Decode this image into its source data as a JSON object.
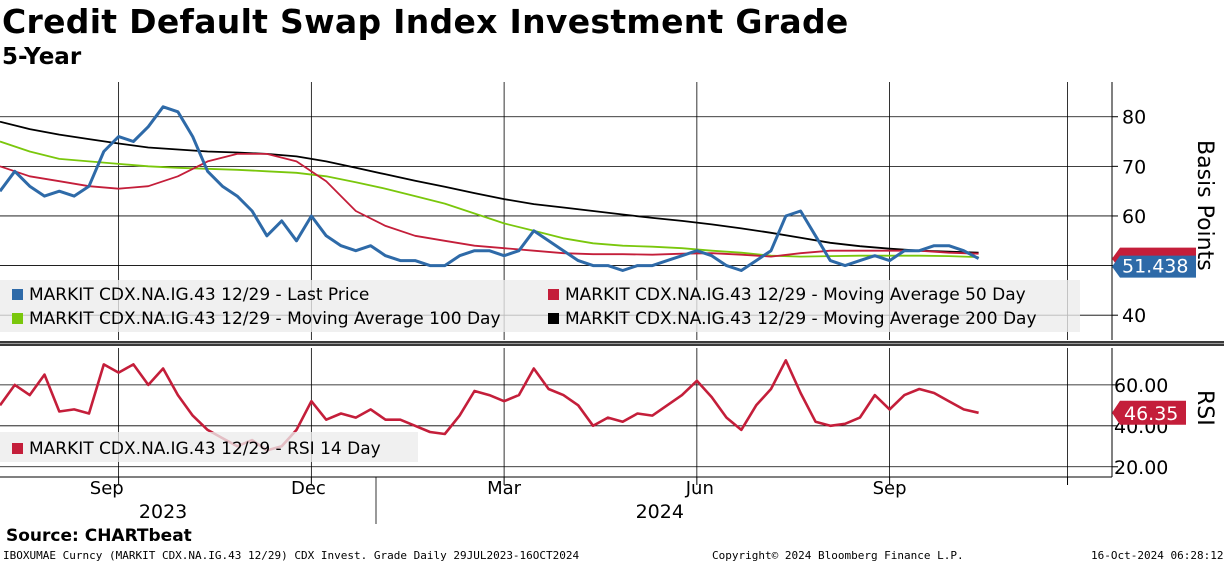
{
  "title": "Credit Default Swap Index Investment Grade",
  "subtitle": "5-Year",
  "source": "Source: CHARTbeat",
  "footer": {
    "left": "IBOXUMAE Curncy (MARKIT CDX.NA.IG.43 12/29) CDX Invest. Grade  Daily 29JUL2023-16OCT2024",
    "center": "Copyright© 2024 Bloomberg Finance L.P.",
    "right": "16-Oct-2024 06:28:12"
  },
  "colors": {
    "price": "#2e6aa8",
    "ma50": "#c41e3a",
    "ma100": "#7ac70c",
    "ma200": "#000000",
    "rsi": "#c41e3a"
  },
  "chart_data": [
    {
      "type": "line",
      "title": "MARKIT CDX.NA.IG.43 12/29",
      "ylabel": "Basis Points",
      "ylim": [
        35,
        87
      ],
      "yticks": [
        40,
        50,
        60,
        70,
        80
      ],
      "x_range": [
        0,
        75
      ],
      "x_tick_positions": [
        8,
        21,
        34,
        47,
        60,
        72
      ],
      "x_month_labels": [
        "Sep",
        "Dec",
        "Mar",
        "Jun",
        "Sep"
      ],
      "x_month_positions": [
        7.2,
        20.8,
        34.0,
        47.2,
        60.0
      ],
      "x_year_labels": [
        "2023",
        "2024"
      ],
      "x_year_positions": [
        11,
        44.5
      ],
      "last_value_label": "51.438",
      "series": [
        {
          "name": "MARKIT CDX.NA.IG.43 12/29 - Last Price",
          "color_key": "price",
          "x": [
            0,
            1,
            2,
            3,
            4,
            5,
            6,
            7,
            8,
            9,
            10,
            11,
            12,
            13,
            14,
            15,
            16,
            17,
            18,
            19,
            20,
            21,
            22,
            23,
            24,
            25,
            26,
            27,
            28,
            29,
            30,
            31,
            32,
            33,
            34,
            35,
            36,
            37,
            38,
            39,
            40,
            41,
            42,
            43,
            44,
            45,
            46,
            47,
            48,
            49,
            50,
            51,
            52,
            53,
            54,
            55,
            56,
            57,
            58,
            59,
            60,
            61,
            62,
            63,
            64,
            65,
            66
          ],
          "values": [
            65,
            69,
            66,
            64,
            65,
            64,
            66,
            73,
            76,
            75,
            78,
            82,
            81,
            76,
            69,
            66,
            64,
            61,
            56,
            59,
            55,
            60,
            56,
            54,
            53,
            54,
            52,
            51,
            51,
            50,
            50,
            52,
            53,
            53,
            52,
            53,
            57,
            55,
            53,
            51,
            50,
            50,
            49,
            50,
            50,
            51,
            52,
            53,
            52,
            50,
            49,
            51,
            53,
            60,
            61,
            56,
            51,
            50,
            51,
            52,
            51,
            53,
            53,
            54,
            54,
            53,
            51.4
          ]
        },
        {
          "name": "MARKIT CDX.NA.IG.43 12/29 - Moving Average 50 Day",
          "color_key": "ma50",
          "x": [
            0,
            2,
            4,
            6,
            8,
            10,
            12,
            14,
            16,
            18,
            20,
            22,
            24,
            26,
            28,
            30,
            32,
            34,
            36,
            38,
            40,
            42,
            44,
            46,
            48,
            50,
            52,
            54,
            56,
            58,
            60,
            62,
            64,
            66
          ],
          "values": [
            70,
            68,
            67,
            66,
            65.5,
            66,
            68,
            71,
            72.5,
            72.5,
            71,
            67,
            61,
            58,
            56,
            55,
            54,
            53.5,
            53,
            52.5,
            52.3,
            52.3,
            52.2,
            52.4,
            52.5,
            52.2,
            51.8,
            52.5,
            53,
            53,
            53,
            53,
            52.6,
            52.4
          ]
        },
        {
          "name": "MARKIT CDX.NA.IG.43 12/29 - Moving Average 100 Day",
          "color_key": "ma100",
          "x": [
            0,
            2,
            4,
            6,
            8,
            10,
            12,
            14,
            16,
            18,
            20,
            22,
            24,
            26,
            28,
            30,
            32,
            34,
            36,
            38,
            40,
            42,
            44,
            46,
            48,
            50,
            52,
            54,
            56,
            58,
            60,
            62,
            64,
            66
          ],
          "values": [
            75,
            73,
            71.5,
            71,
            70.5,
            70,
            69.7,
            69.5,
            69.3,
            69,
            68.7,
            68,
            66.8,
            65.5,
            64,
            62.5,
            60.5,
            58.5,
            57,
            55.5,
            54.5,
            54,
            53.8,
            53.5,
            53,
            52.6,
            52,
            51.8,
            51.9,
            52,
            52,
            52,
            51.9,
            51.7
          ]
        },
        {
          "name": "MARKIT CDX.NA.IG.43 12/29 - Moving Average 200 Day",
          "color_key": "ma200",
          "x": [
            0,
            2,
            4,
            6,
            8,
            10,
            12,
            14,
            16,
            18,
            20,
            22,
            24,
            26,
            28,
            30,
            32,
            34,
            36,
            38,
            40,
            42,
            44,
            46,
            48,
            50,
            52,
            54,
            56,
            58,
            60,
            62,
            64,
            66
          ],
          "values": [
            79,
            77.5,
            76.4,
            75.5,
            74.6,
            73.8,
            73.4,
            73,
            72.8,
            72.5,
            72,
            71,
            69.7,
            68.4,
            67.1,
            65.9,
            64.6,
            63.4,
            62.4,
            61.7,
            61,
            60.3,
            59.6,
            59,
            58.3,
            57.5,
            56.6,
            55.6,
            54.6,
            53.9,
            53.4,
            53,
            52.8,
            52.6
          ]
        }
      ],
      "legend": [
        {
          "label": "MARKIT CDX.NA.IG.43 12/29 - Last Price",
          "color_key": "price"
        },
        {
          "label": "MARKIT CDX.NA.IG.43 12/29 - Moving Average 50 Day",
          "color_key": "ma50"
        },
        {
          "label": "MARKIT CDX.NA.IG.43 12/29 - Moving Average 100 Day",
          "color_key": "ma100"
        },
        {
          "label": "MARKIT CDX.NA.IG.43 12/29 - Moving Average 200 Day",
          "color_key": "ma200"
        }
      ]
    },
    {
      "type": "line",
      "ylabel": "RSI",
      "ylim": [
        15,
        78
      ],
      "yticks": [
        20,
        40,
        60
      ],
      "ytick_labels": [
        "20.00",
        "40.00",
        "60.00"
      ],
      "last_value_label": "46.35",
      "series": [
        {
          "name": "MARKIT CDX.NA.IG.43 12/29 - RSI 14 Day",
          "color_key": "rsi",
          "x": [
            0,
            1,
            2,
            3,
            4,
            5,
            6,
            7,
            8,
            9,
            10,
            11,
            12,
            13,
            14,
            15,
            16,
            17,
            18,
            19,
            20,
            21,
            22,
            23,
            24,
            25,
            26,
            27,
            28,
            29,
            30,
            31,
            32,
            33,
            34,
            35,
            36,
            37,
            38,
            39,
            40,
            41,
            42,
            43,
            44,
            45,
            46,
            47,
            48,
            49,
            50,
            51,
            52,
            53,
            54,
            55,
            56,
            57,
            58,
            59,
            60,
            61,
            62,
            63,
            64,
            65,
            66
          ],
          "values": [
            50,
            60,
            55,
            65,
            47,
            48,
            46,
            70,
            66,
            70,
            60,
            68,
            55,
            45,
            38,
            34,
            30,
            33,
            28,
            30,
            38,
            52,
            43,
            46,
            44,
            48,
            43,
            43,
            40,
            37,
            36,
            45,
            57,
            55,
            52,
            55,
            68,
            58,
            55,
            50,
            40,
            44,
            42,
            46,
            45,
            50,
            55,
            62,
            54,
            44,
            38,
            50,
            58,
            72,
            56,
            42,
            40,
            41,
            44,
            55,
            48,
            55,
            58,
            56,
            52,
            48,
            46.35
          ]
        }
      ],
      "legend": [
        {
          "label": "MARKIT CDX.NA.IG.43 12/29 - RSI 14 Day",
          "color_key": "rsi"
        }
      ]
    }
  ]
}
